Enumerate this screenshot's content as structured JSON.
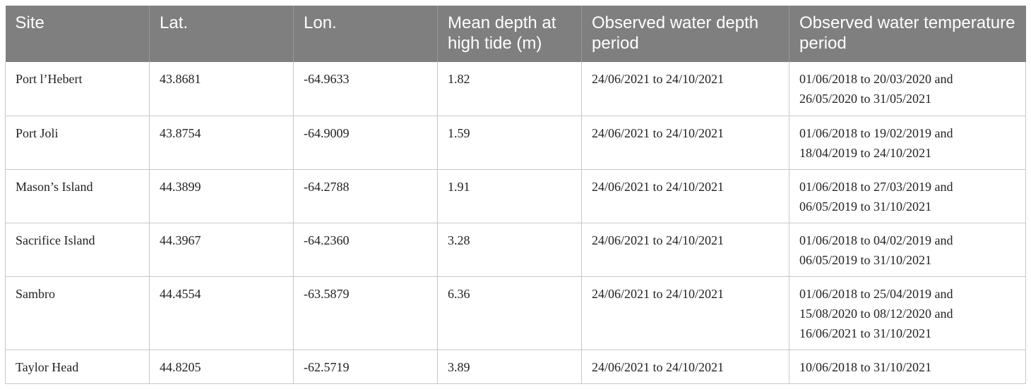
{
  "table": {
    "headers": [
      "Site",
      "Lat.",
      "Lon.",
      "Mean depth at high tide (m)",
      "Observed water depth period",
      "Observed water temperature period"
    ],
    "rows": [
      {
        "site": "Port l’Hebert",
        "lat": "43.8681",
        "lon": "-64.9633",
        "depth": "1.82",
        "depth_period": "24/06/2021 to 24/10/2021",
        "temp_period": [
          "01/06/2018 to 20/03/2020 and",
          "26/05/2020 to 31/05/2021"
        ]
      },
      {
        "site": "Port Joli",
        "lat": "43.8754",
        "lon": "-64.9009",
        "depth": "1.59",
        "depth_period": "24/06/2021 to 24/10/2021",
        "temp_period": [
          "01/06/2018 to 19/02/2019 and",
          "18/04/2019 to 24/10/2021"
        ]
      },
      {
        "site": "Mason’s Island",
        "lat": "44.3899",
        "lon": "-64.2788",
        "depth": "1.91",
        "depth_period": "24/06/2021 to 24/10/2021",
        "temp_period": [
          "01/06/2018 to 27/03/2019 and",
          "06/05/2019 to 31/10/2021"
        ]
      },
      {
        "site": "Sacrifice Island",
        "lat": "44.3967",
        "lon": "-64.2360",
        "depth": "3.28",
        "depth_period": "24/06/2021 to 24/10/2021",
        "temp_period": [
          "01/06/2018 to 04/02/2019 and",
          "06/05/2019 to 31/10/2021"
        ]
      },
      {
        "site": "Sambro",
        "lat": "44.4554",
        "lon": "-63.5879",
        "depth": "6.36",
        "depth_period": "24/06/2021 to 24/10/2021",
        "temp_period": [
          "01/06/2018 to 25/04/2019 and",
          "15/08/2020 to 08/12/2020 and",
          "16/06/2021 to 31/10/2021"
        ]
      },
      {
        "site": "Taylor Head",
        "lat": "44.8205",
        "lon": "-62.5719",
        "depth": "3.89",
        "depth_period": "24/06/2021 to 24/10/2021",
        "temp_period": [
          "10/06/2018 to 31/10/2021"
        ]
      }
    ]
  }
}
